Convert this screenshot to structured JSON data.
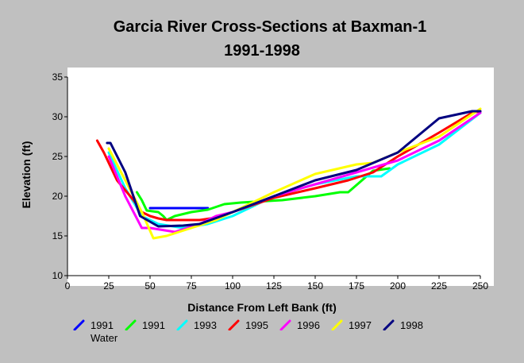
{
  "chart_data": {
    "type": "line",
    "title": "Garcia River Cross-Sections at Baxman-1",
    "subtitle": "1991-1998",
    "xlabel": "Distance From Left Bank (ft)",
    "ylabel": "Elevation (ft)",
    "xlim": [
      0,
      250
    ],
    "ylim": [
      10,
      35
    ],
    "x_ticks": [
      "0",
      "25",
      "50",
      "75",
      "100",
      "125",
      "150",
      "175",
      "200",
      "225",
      "250"
    ],
    "y_ticks": [
      "10",
      "15",
      "20",
      "25",
      "30",
      "35"
    ],
    "grid": false,
    "legend_position": "bottom",
    "series": [
      {
        "name": "1991",
        "name2": "Water",
        "color": "#0000ff",
        "x": [
          50,
          85
        ],
        "y": [
          18.5,
          18.5
        ]
      },
      {
        "name": "1991",
        "color": "#00ff00",
        "x": [
          42,
          45,
          48,
          55,
          58,
          60,
          65,
          75,
          85,
          95,
          105,
          130,
          150,
          165,
          170,
          185,
          195
        ],
        "y": [
          20.5,
          19.5,
          18.2,
          18.0,
          17.5,
          17.0,
          17.5,
          18.0,
          18.3,
          19.0,
          19.2,
          19.5,
          20.0,
          20.5,
          20.5,
          23.2,
          23.5
        ]
      },
      {
        "name": "1993",
        "color": "#00ffff",
        "x": [
          25,
          35,
          45,
          55,
          70,
          85,
          100,
          125,
          150,
          175,
          190,
          200,
          225,
          250
        ],
        "y": [
          25.5,
          21.0,
          17.5,
          16.5,
          16.0,
          16.5,
          17.5,
          20.0,
          21.5,
          22.5,
          22.5,
          24.0,
          26.5,
          30.5
        ]
      },
      {
        "name": "1995",
        "color": "#ff0000",
        "x": [
          18,
          22,
          30,
          40,
          45,
          50,
          55,
          60,
          70,
          80,
          90,
          100,
          125,
          150,
          170,
          185,
          200,
          225,
          245,
          250
        ],
        "y": [
          27.0,
          25.5,
          22.0,
          19.5,
          18.0,
          17.5,
          17.2,
          17.0,
          17.0,
          17.0,
          17.3,
          18.0,
          19.8,
          21.0,
          22.0,
          23.0,
          25.0,
          28.0,
          30.5,
          30.7
        ]
      },
      {
        "name": "1996",
        "color": "#ff00ff",
        "x": [
          25,
          35,
          45,
          50,
          65,
          80,
          90,
          100,
          125,
          150,
          175,
          200,
          225,
          250
        ],
        "y": [
          25.0,
          20.0,
          16.0,
          16.0,
          15.5,
          16.5,
          17.5,
          18.0,
          20.0,
          21.5,
          23.0,
          24.5,
          27.0,
          30.5
        ]
      },
      {
        "name": "1997",
        "color": "#ffff00",
        "x": [
          25,
          35,
          45,
          52,
          60,
          75,
          90,
          100,
          125,
          150,
          175,
          185,
          200,
          225,
          250
        ],
        "y": [
          26.0,
          22.0,
          18.0,
          14.7,
          15.0,
          16.0,
          17.0,
          18.0,
          20.5,
          22.8,
          24.0,
          24.2,
          25.5,
          27.5,
          31.0
        ]
      },
      {
        "name": "1998",
        "color": "#000080",
        "x": [
          24,
          26,
          35,
          44,
          55,
          70,
          80,
          100,
          125,
          150,
          175,
          200,
          225,
          245,
          250
        ],
        "y": [
          26.7,
          26.7,
          23.0,
          17.5,
          16.2,
          16.3,
          16.5,
          18.0,
          20.0,
          22.0,
          23.3,
          25.5,
          29.8,
          30.7,
          30.7
        ]
      }
    ]
  }
}
